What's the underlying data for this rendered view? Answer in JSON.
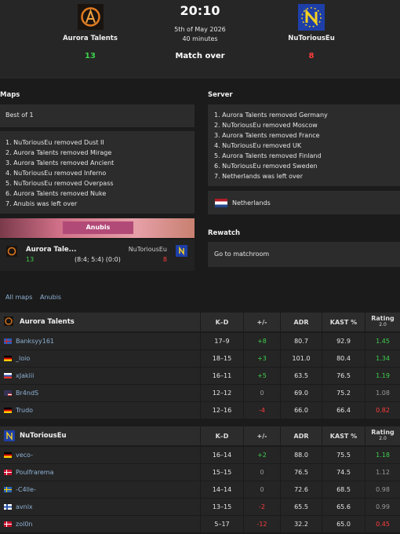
{
  "header": {
    "team1": {
      "name": "Aurora Talents",
      "score": "13"
    },
    "time": "20:10",
    "date": "5th of May 2026",
    "duration": "40 minutes",
    "status": "Match over",
    "team2": {
      "name": "NuToriousEu",
      "score": "8"
    }
  },
  "maps": {
    "title": "Maps",
    "format": "Best of 1",
    "veto": [
      "1. NuToriousEu removed Dust II",
      "2. Aurora Talents removed Mirage",
      "3. Aurora Talents removed Ancient",
      "4. NuToriousEu removed Inferno",
      "5. NuToriousEu removed Overpass",
      "6. Aurora Talents removed Nuke",
      "7. Anubis was left over"
    ],
    "map_name": "Anubis",
    "result": {
      "team1": "Aurora Tale...",
      "team1_score": "13",
      "halves": "(8:4; 5:4) (0:0)",
      "team2": "NuToriousEu",
      "team2_score": "8"
    }
  },
  "server": {
    "title": "Server",
    "veto": [
      "1. Aurora Talents removed Germany",
      "2. NuToriousEu removed Moscow",
      "3. Aurora Talents removed France",
      "4. NuToriousEu removed UK",
      "5. Aurora Talents removed Finland",
      "6. NuToriousEu removed Sweden",
      "7. Netherlands was left over"
    ],
    "location": "Netherlands"
  },
  "rewatch": {
    "title": "Rewatch",
    "link": "Go to matchroom"
  },
  "tabs": [
    "All maps",
    "Anubis"
  ],
  "teams": [
    {
      "name": "Aurora Talents",
      "columns": [
        "K–D",
        "+/-",
        "ADR",
        "KAST %",
        "Rating"
      ],
      "rating_version": "2.0",
      "players": [
        [
          "Banksyy161",
          "17–9",
          "+8",
          "80.7",
          "92.9",
          "1.45"
        ],
        [
          "_loio",
          "18–15",
          "+3",
          "101.0",
          "80.4",
          "1.34"
        ],
        [
          "xJakiii",
          "16–11",
          "+5",
          "63.5",
          "76.5",
          "1.19"
        ],
        [
          "Br4ndS",
          "12–12",
          "0",
          "69.0",
          "75.2",
          "1.08"
        ],
        [
          "Trudo",
          "12–16",
          "-4",
          "66.0",
          "66.4",
          "0.82"
        ]
      ]
    },
    {
      "name": "NuToriousEu",
      "columns": [
        "K–D",
        "+/-",
        "ADR",
        "KAST %",
        "Rating"
      ],
      "rating_version": "2.0",
      "players": [
        [
          "veco-",
          "16–14",
          "+2",
          "88.0",
          "75.5",
          "1.18"
        ],
        [
          "Poulfrarema",
          "15–15",
          "0",
          "76.5",
          "74.5",
          "1.12"
        ],
        [
          "-C4lle-",
          "14–14",
          "0",
          "72.6",
          "68.5",
          "0.98"
        ],
        [
          "avnix",
          "13–15",
          "-2",
          "65.5",
          "65.6",
          "0.99"
        ],
        [
          "zol0n",
          "5–17",
          "-12",
          "32.2",
          "65.0",
          "0.45"
        ]
      ]
    }
  ]
}
